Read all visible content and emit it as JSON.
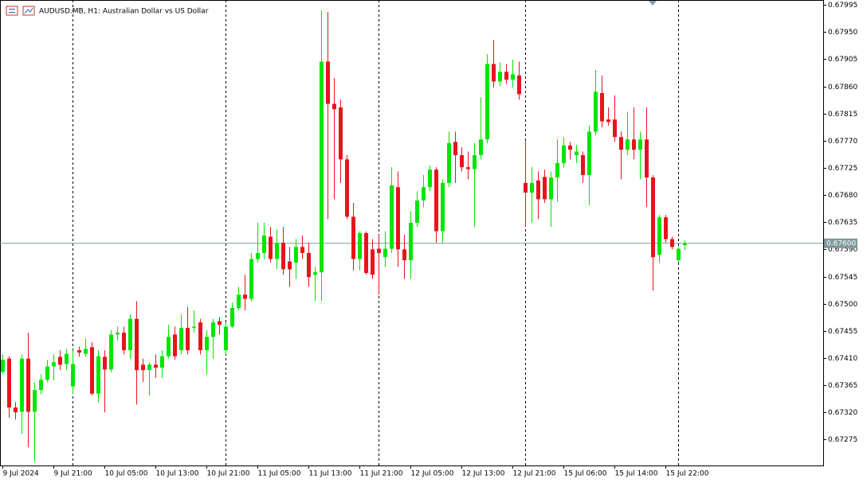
{
  "chart_data": {
    "type": "candlestick",
    "title": "AUDUSD.MB, H1: Australian Dollar vs US Dollar",
    "categories": [
      "9 Jul 2024",
      null,
      null,
      null,
      null,
      null,
      null,
      null,
      "9 Jul 21:00",
      null,
      null,
      null,
      null,
      null,
      null,
      null,
      "10 Jul 05:00",
      null,
      null,
      null,
      null,
      null,
      null,
      null,
      "10 Jul 13:00",
      null,
      null,
      null,
      null,
      null,
      null,
      null,
      "10 Jul 21:00",
      null,
      null,
      null,
      null,
      null,
      null,
      null,
      "11 Jul 05:00",
      null,
      null,
      null,
      null,
      null,
      null,
      null,
      "11 Jul 13:00",
      null,
      null,
      null,
      null,
      null,
      null,
      null,
      "11 Jul 21:00",
      null,
      null,
      null,
      null,
      null,
      null,
      null,
      "12 Jul 05:00",
      null,
      null,
      null,
      null,
      null,
      null,
      null,
      "12 Jul 13:00",
      null,
      null,
      null,
      null,
      null,
      null,
      null,
      "12 Jul 21:00",
      null,
      null,
      null,
      null,
      null,
      null,
      null,
      "15 Jul 06:00",
      null,
      null,
      null,
      null,
      null,
      null,
      null,
      "15 Jul 14:00",
      null,
      null,
      null,
      null,
      null,
      null,
      null,
      "15 Jul 22:00",
      null,
      null,
      null
    ],
    "open": [
      0.67387,
      0.67409,
      0.67328,
      0.67321,
      0.67409,
      0.67321,
      0.67357,
      0.67374,
      0.67396,
      0.67412,
      0.674,
      0.67363,
      0.67423,
      0.67417,
      0.67428,
      0.67351,
      0.67412,
      0.67391,
      0.67449,
      0.67452,
      0.67423,
      0.67475,
      0.67399,
      0.6739,
      0.67399,
      0.67394,
      0.67413,
      0.67449,
      0.67423,
      0.6746,
      0.6746,
      0.67469,
      0.67423,
      0.67445,
      0.67471,
      0.67423,
      0.67462,
      0.67493,
      0.67515,
      0.67508,
      0.67574,
      0.67584,
      0.67611,
      0.67574,
      0.67601,
      0.6757,
      0.67568,
      0.67594,
      0.67584,
      0.67548,
      0.67552,
      0.67901,
      0.67831,
      0.67825,
      0.67739,
      0.67644,
      0.67574,
      0.67617,
      0.6759,
      0.67591,
      0.67577,
      0.67591,
      0.67693,
      0.6759,
      0.67572,
      0.67634,
      0.67671,
      0.67693,
      0.67722,
      0.6762,
      0.677,
      0.67768,
      0.67746,
      0.67726,
      0.67723,
      0.67746,
      0.67772,
      0.67897,
      0.67868,
      0.67884,
      0.67871,
      0.67878,
      0.677,
      0.67684,
      0.67704,
      0.6771,
      0.67673,
      0.67709,
      0.67733,
      0.67762,
      0.67746,
      0.67746,
      0.67713,
      0.67785,
      0.67849,
      0.67805,
      0.67805,
      0.67776,
      0.67755,
      0.67772,
      0.67755,
      0.67772,
      0.67709,
      0.67581,
      0.67643,
      0.67607,
      0.67572,
      0.67597
    ],
    "high": [
      0.67416,
      0.67413,
      0.67337,
      0.67416,
      0.67452,
      0.6737,
      0.67383,
      0.67407,
      0.67416,
      0.67423,
      0.67425,
      0.67423,
      0.67429,
      0.67442,
      0.67436,
      0.67423,
      0.67423,
      0.67456,
      0.67462,
      0.67462,
      0.67482,
      0.67504,
      0.67409,
      0.67403,
      0.67416,
      0.67423,
      0.67465,
      0.67462,
      0.67482,
      0.67495,
      0.67489,
      0.67475,
      0.67456,
      0.67475,
      0.67478,
      0.67469,
      0.67502,
      0.67528,
      0.67548,
      0.67584,
      0.67634,
      0.67634,
      0.67627,
      0.67623,
      0.67627,
      0.67594,
      0.67607,
      0.67613,
      0.67601,
      0.67561,
      0.67986,
      0.67983,
      0.67874,
      0.67838,
      0.67746,
      0.67667,
      0.6762,
      0.6762,
      0.67607,
      0.67614,
      0.6762,
      0.67726,
      0.67719,
      0.67614,
      0.67653,
      0.67686,
      0.67713,
      0.67729,
      0.67726,
      0.67706,
      0.67785,
      0.67785,
      0.67759,
      0.67752,
      0.67766,
      0.67842,
      0.67913,
      0.67937,
      0.679,
      0.67897,
      0.67904,
      0.67901,
      0.67769,
      0.67726,
      0.67719,
      0.67722,
      0.67719,
      0.67772,
      0.67776,
      0.67768,
      0.67763,
      0.67752,
      0.67795,
      0.67887,
      0.67878,
      0.67825,
      0.67845,
      0.67785,
      0.67818,
      0.67825,
      0.67785,
      0.67825,
      0.67713,
      0.67647,
      0.67647,
      0.67611,
      0.67594,
      0.67605
    ],
    "low": [
      0.67383,
      0.67311,
      0.67308,
      0.67284,
      0.67262,
      0.67238,
      0.6735,
      0.6737,
      0.67373,
      0.6739,
      0.6739,
      0.6735,
      0.67412,
      0.67412,
      0.67348,
      0.67337,
      0.6732,
      0.67386,
      0.67439,
      0.67416,
      0.67409,
      0.67333,
      0.6737,
      0.67348,
      0.67377,
      0.67377,
      0.67409,
      0.67407,
      0.67416,
      0.67416,
      0.67452,
      0.67416,
      0.67383,
      0.67409,
      0.67449,
      0.67416,
      0.6746,
      0.67489,
      0.67489,
      0.67504,
      0.67568,
      0.67574,
      0.67568,
      0.67557,
      0.67548,
      0.67528,
      0.67541,
      0.67574,
      0.67528,
      0.67504,
      0.67504,
      0.6764,
      0.67673,
      0.677,
      0.6764,
      0.67555,
      0.67555,
      0.67548,
      0.67541,
      0.67515,
      0.67561,
      0.67584,
      0.67561,
      0.67541,
      0.67541,
      0.67627,
      0.6766,
      0.67686,
      0.67601,
      0.67601,
      0.67693,
      0.677,
      0.67719,
      0.67706,
      0.67627,
      0.67739,
      0.67766,
      0.67858,
      0.6786,
      0.67864,
      0.67858,
      0.67838,
      0.67627,
      0.67634,
      0.6764,
      0.67667,
      0.67627,
      0.67669,
      0.67726,
      0.67739,
      0.67733,
      0.677,
      0.67663,
      0.67779,
      0.67792,
      0.67795,
      0.67768,
      0.67706,
      0.67746,
      0.67739,
      0.67706,
      0.6766,
      0.67522,
      0.67568,
      0.67601,
      0.6759,
      0.67568,
      0.67589
    ],
    "close": [
      0.67407,
      0.67328,
      0.6732,
      0.67409,
      0.67321,
      0.67357,
      0.67374,
      0.67396,
      0.67403,
      0.67399,
      0.67417,
      0.674,
      0.67419,
      0.67425,
      0.67351,
      0.67413,
      0.67391,
      0.67449,
      0.67452,
      0.67423,
      0.67475,
      0.6739,
      0.6739,
      0.67399,
      0.67394,
      0.67413,
      0.67445,
      0.67413,
      0.6746,
      0.67423,
      0.67462,
      0.67423,
      0.67445,
      0.67469,
      0.67465,
      0.67462,
      0.67493,
      0.67515,
      0.67508,
      0.67574,
      0.67584,
      0.67613,
      0.67574,
      0.67601,
      0.67557,
      0.67557,
      0.67594,
      0.67584,
      0.67544,
      0.67552,
      0.67901,
      0.67831,
      0.67822,
      0.67739,
      0.67644,
      0.67574,
      0.67617,
      0.67551,
      0.67548,
      0.67584,
      0.67591,
      0.67696,
      0.6759,
      0.67572,
      0.67634,
      0.67671,
      0.67693,
      0.67722,
      0.6762,
      0.677,
      0.67766,
      0.67746,
      0.67726,
      0.67723,
      0.67746,
      0.67772,
      0.67897,
      0.67868,
      0.67884,
      0.67871,
      0.6788,
      0.67847,
      0.67684,
      0.677,
      0.67673,
      0.67673,
      0.67709,
      0.67733,
      0.67762,
      0.67755,
      0.67752,
      0.67713,
      0.67785,
      0.67851,
      0.67802,
      0.67801,
      0.67776,
      0.67755,
      0.67772,
      0.67755,
      0.67772,
      0.67709,
      0.67577,
      0.67643,
      0.67607,
      0.67594,
      0.67591,
      0.676
    ],
    "up_color": "#00e600",
    "down_color": "#e8141c",
    "ylim": [
      0.67232,
      0.68003
    ],
    "yticks": [
      {
        "value": 0.67275,
        "label": "0.67275"
      },
      {
        "value": 0.6732,
        "label": "0.67320"
      },
      {
        "value": 0.67365,
        "label": "0.67365"
      },
      {
        "value": 0.6741,
        "label": "0.67410"
      },
      {
        "value": 0.67455,
        "label": "0.67455"
      },
      {
        "value": 0.675,
        "label": "0.67500"
      },
      {
        "value": 0.67545,
        "label": "0.67545"
      },
      {
        "value": 0.6759,
        "label": "0.67590"
      },
      {
        "value": 0.67635,
        "label": "0.67635"
      },
      {
        "value": 0.6768,
        "label": "0.67680"
      },
      {
        "value": 0.67725,
        "label": "0.67725"
      },
      {
        "value": 0.6777,
        "label": "0.67770"
      },
      {
        "value": 0.67815,
        "label": "0.67815"
      },
      {
        "value": 0.6786,
        "label": "0.67860"
      },
      {
        "value": 0.67905,
        "label": "0.67905"
      },
      {
        "value": 0.6795,
        "label": "0.67950"
      },
      {
        "value": 0.67995,
        "label": "0.67995"
      }
    ],
    "separators": [
      11,
      35,
      59,
      82,
      106
    ],
    "current_price": {
      "value": 0.676,
      "label": "0.67600"
    },
    "price_line_color": "#7f9a9a"
  }
}
